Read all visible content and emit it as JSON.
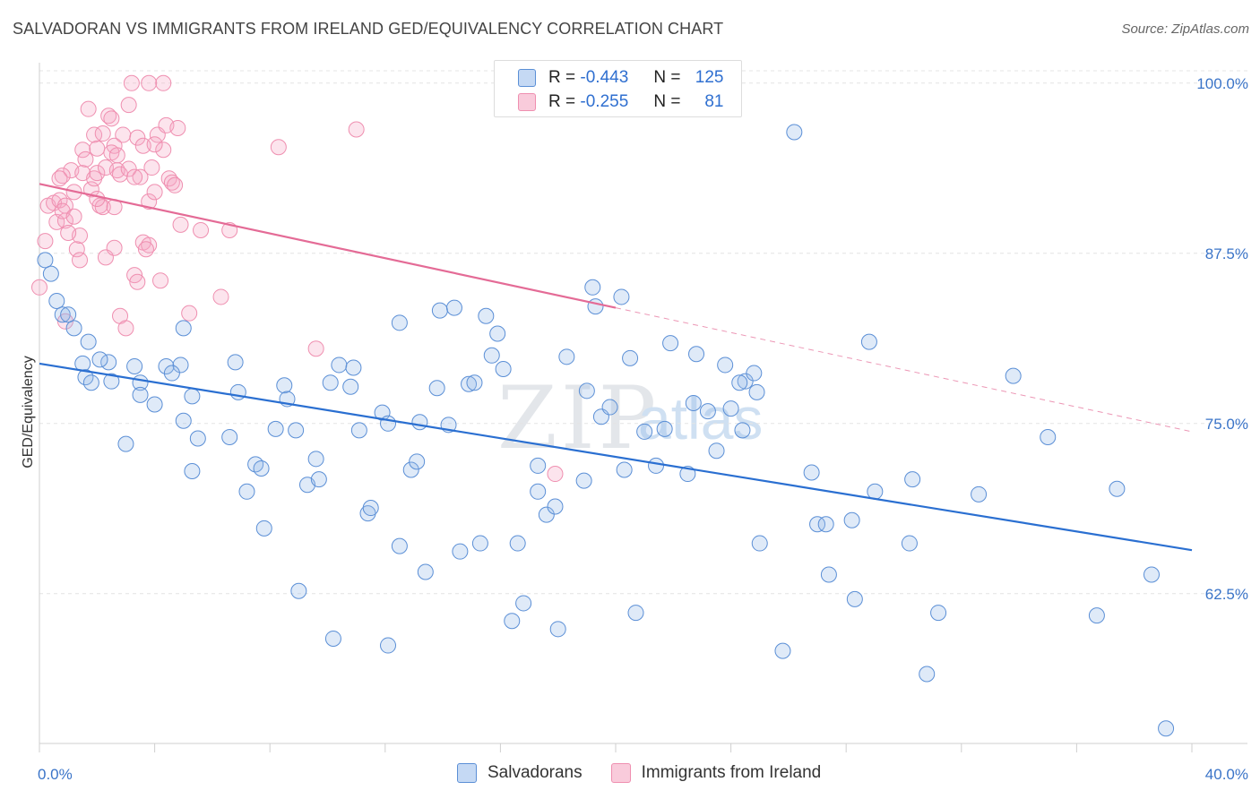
{
  "title": "SALVADORAN VS IMMIGRANTS FROM IRELAND GED/EQUIVALENCY CORRELATION CHART",
  "source": "Source: ZipAtlas.com",
  "watermark": {
    "zip": "ZIP",
    "atlas": "atlas"
  },
  "legend": {
    "rows": [
      {
        "r_label": "R =",
        "r_value": "-0.443",
        "n_label": "N =",
        "n_value": "125"
      },
      {
        "r_label": "R =",
        "r_value": "-0.255",
        "n_label": "N =",
        "n_value": "81"
      }
    ]
  },
  "bottom_legend": {
    "series1": "Salvadorans",
    "series2": "Immigrants from Ireland"
  },
  "chart_data": {
    "type": "scatter",
    "title": "SALVADORAN VS IMMIGRANTS FROM IRELAND GED/EQUIVALENCY CORRELATION CHART",
    "xlabel": "",
    "ylabel": "GED/Equivalency",
    "xlim": [
      0,
      40
    ],
    "ylim": [
      51.5,
      101.5
    ],
    "x_tick_labels": [
      "0.0%",
      "40.0%"
    ],
    "y_tick_labels": [
      "100.0%",
      "87.5%",
      "75.0%",
      "62.5%"
    ],
    "y_ticks": [
      100,
      87.5,
      75,
      62.5
    ],
    "grid": true,
    "colors": {
      "series1": "#5b8fd6",
      "series2": "#ef8fb0",
      "line1": "#2a6fd1",
      "line2": "#e46b96",
      "axis_text": "#3a74c8"
    },
    "series": [
      {
        "name": "Salvadorans",
        "trend": {
          "x": [
            0,
            40
          ],
          "y": [
            79.4,
            65.7
          ]
        },
        "points": [
          [
            0.2,
            87.0
          ],
          [
            0.4,
            86.0
          ],
          [
            0.6,
            84.0
          ],
          [
            0.8,
            83.0
          ],
          [
            1.2,
            82.0
          ],
          [
            1.7,
            81.0
          ],
          [
            1.0,
            83.0
          ],
          [
            2.4,
            79.5
          ],
          [
            1.5,
            79.4
          ],
          [
            1.6,
            78.4
          ],
          [
            2.1,
            79.7
          ],
          [
            1.8,
            78.0
          ],
          [
            2.5,
            78.1
          ],
          [
            3.5,
            78.0
          ],
          [
            3.3,
            79.2
          ],
          [
            4.4,
            79.2
          ],
          [
            4.9,
            79.3
          ],
          [
            4.6,
            78.7
          ],
          [
            3.0,
            73.5
          ],
          [
            3.5,
            77.1
          ],
          [
            4.0,
            76.4
          ],
          [
            5.0,
            82.0
          ],
          [
            5.0,
            75.2
          ],
          [
            5.3,
            71.5
          ],
          [
            5.5,
            73.9
          ],
          [
            5.3,
            77.0
          ],
          [
            6.8,
            79.5
          ],
          [
            6.9,
            77.3
          ],
          [
            7.5,
            72.0
          ],
          [
            7.7,
            71.7
          ],
          [
            7.2,
            70.0
          ],
          [
            7.8,
            67.3
          ],
          [
            8.2,
            74.6
          ],
          [
            8.5,
            77.8
          ],
          [
            8.6,
            76.8
          ],
          [
            8.9,
            74.5
          ],
          [
            9.0,
            62.7
          ],
          [
            9.3,
            70.5
          ],
          [
            9.6,
            72.4
          ],
          [
            9.7,
            70.9
          ],
          [
            10.1,
            78.0
          ],
          [
            10.4,
            79.3
          ],
          [
            10.8,
            77.7
          ],
          [
            10.9,
            79.1
          ],
          [
            11.1,
            74.5
          ],
          [
            10.2,
            59.2
          ],
          [
            11.4,
            68.4
          ],
          [
            11.5,
            68.8
          ],
          [
            11.9,
            75.8
          ],
          [
            12.1,
            75.0
          ],
          [
            12.1,
            58.7
          ],
          [
            12.5,
            82.4
          ],
          [
            12.5,
            66.0
          ],
          [
            12.9,
            71.6
          ],
          [
            13.1,
            72.2
          ],
          [
            13.2,
            75.1
          ],
          [
            13.4,
            64.1
          ],
          [
            13.8,
            77.6
          ],
          [
            13.9,
            83.3
          ],
          [
            14.2,
            74.9
          ],
          [
            14.4,
            83.5
          ],
          [
            14.6,
            65.6
          ],
          [
            14.9,
            77.9
          ],
          [
            15.1,
            78.0
          ],
          [
            15.3,
            66.2
          ],
          [
            15.5,
            82.9
          ],
          [
            15.9,
            81.6
          ],
          [
            16.1,
            79.0
          ],
          [
            16.4,
            60.5
          ],
          [
            16.6,
            66.2
          ],
          [
            16.8,
            61.8
          ],
          [
            17.3,
            71.9
          ],
          [
            17.3,
            70.0
          ],
          [
            17.6,
            68.3
          ],
          [
            17.9,
            68.9
          ],
          [
            18.0,
            59.9
          ],
          [
            18.3,
            79.9
          ],
          [
            18.9,
            70.8
          ],
          [
            19.0,
            77.4
          ],
          [
            19.2,
            85.0
          ],
          [
            19.3,
            83.6
          ],
          [
            19.5,
            75.5
          ],
          [
            19.8,
            76.2
          ],
          [
            20.2,
            84.3
          ],
          [
            20.3,
            71.6
          ],
          [
            20.5,
            79.8
          ],
          [
            20.7,
            61.1
          ],
          [
            21.0,
            74.4
          ],
          [
            21.4,
            71.9
          ],
          [
            21.7,
            74.6
          ],
          [
            21.9,
            80.9
          ],
          [
            22.5,
            71.3
          ],
          [
            22.7,
            76.5
          ],
          [
            22.8,
            80.1
          ],
          [
            23.2,
            75.9
          ],
          [
            23.8,
            79.3
          ],
          [
            24.0,
            76.1
          ],
          [
            24.4,
            74.5
          ],
          [
            24.5,
            78.1
          ],
          [
            24.8,
            78.7
          ],
          [
            24.9,
            77.3
          ],
          [
            25.0,
            66.2
          ],
          [
            24.3,
            78.0
          ],
          [
            26.2,
            96.4
          ],
          [
            25.8,
            58.3
          ],
          [
            26.8,
            71.4
          ],
          [
            27.0,
            67.6
          ],
          [
            27.3,
            67.6
          ],
          [
            27.4,
            63.9
          ],
          [
            28.3,
            62.1
          ],
          [
            28.2,
            67.9
          ],
          [
            28.8,
            81.0
          ],
          [
            29.0,
            70.0
          ],
          [
            30.2,
            66.2
          ],
          [
            30.3,
            70.9
          ],
          [
            30.8,
            56.6
          ],
          [
            31.2,
            61.1
          ],
          [
            32.6,
            69.8
          ],
          [
            33.8,
            78.5
          ],
          [
            36.7,
            60.9
          ],
          [
            37.4,
            70.2
          ],
          [
            38.6,
            63.9
          ],
          [
            39.1,
            52.6
          ],
          [
            35.0,
            74.0
          ],
          [
            23.5,
            73.0
          ],
          [
            15.7,
            80.0
          ],
          [
            6.6,
            74.0
          ]
        ]
      },
      {
        "name": "Immigrants from Ireland",
        "trend": {
          "x": [
            0,
            40
          ],
          "y": [
            92.6,
            74.4
          ]
        },
        "points": [
          [
            0.0,
            85.0
          ],
          [
            0.2,
            88.4
          ],
          [
            0.3,
            91.0
          ],
          [
            0.5,
            91.2
          ],
          [
            0.6,
            89.8
          ],
          [
            0.7,
            91.4
          ],
          [
            0.9,
            89.9
          ],
          [
            0.9,
            91.0
          ],
          [
            1.1,
            93.6
          ],
          [
            0.8,
            90.6
          ],
          [
            1.2,
            92.0
          ],
          [
            1.3,
            87.8
          ],
          [
            1.5,
            93.4
          ],
          [
            1.5,
            95.1
          ],
          [
            1.6,
            94.4
          ],
          [
            1.8,
            92.2
          ],
          [
            1.9,
            93.0
          ],
          [
            2.0,
            93.4
          ],
          [
            2.1,
            91.0
          ],
          [
            2.2,
            90.9
          ],
          [
            2.3,
            93.8
          ],
          [
            1.7,
            98.1
          ],
          [
            1.9,
            96.2
          ],
          [
            2.2,
            96.3
          ],
          [
            2.0,
            95.2
          ],
          [
            2.4,
            97.6
          ],
          [
            2.5,
            97.4
          ],
          [
            2.6,
            95.4
          ],
          [
            2.7,
            93.6
          ],
          [
            2.8,
            93.3
          ],
          [
            2.5,
            94.9
          ],
          [
            2.9,
            96.2
          ],
          [
            3.1,
            98.4
          ],
          [
            3.2,
            100.0
          ],
          [
            3.4,
            96.0
          ],
          [
            3.1,
            93.7
          ],
          [
            3.5,
            93.1
          ],
          [
            3.6,
            95.4
          ],
          [
            3.8,
            100.0
          ],
          [
            3.8,
            91.3
          ],
          [
            3.9,
            93.8
          ],
          [
            4.0,
            92.0
          ],
          [
            4.1,
            96.2
          ],
          [
            4.3,
            95.1
          ],
          [
            4.4,
            96.9
          ],
          [
            4.5,
            93.0
          ],
          [
            4.3,
            100.0
          ],
          [
            4.6,
            92.7
          ],
          [
            4.7,
            92.5
          ],
          [
            4.8,
            96.7
          ],
          [
            2.3,
            87.2
          ],
          [
            2.6,
            87.9
          ],
          [
            3.3,
            85.9
          ],
          [
            3.4,
            85.4
          ],
          [
            3.6,
            88.3
          ],
          [
            3.8,
            88.1
          ],
          [
            3.7,
            87.8
          ],
          [
            4.9,
            89.6
          ],
          [
            5.2,
            83.1
          ],
          [
            5.6,
            89.2
          ],
          [
            6.3,
            84.3
          ],
          [
            6.6,
            89.2
          ],
          [
            8.3,
            95.3
          ],
          [
            9.6,
            80.5
          ],
          [
            11.0,
            96.6
          ],
          [
            2.8,
            82.9
          ],
          [
            3.0,
            82.0
          ],
          [
            17.9,
            71.3
          ],
          [
            1.4,
            88.8
          ],
          [
            1.2,
            90.2
          ],
          [
            0.8,
            93.2
          ],
          [
            1.4,
            87.0
          ],
          [
            2.6,
            90.9
          ],
          [
            2.7,
            94.7
          ],
          [
            4.0,
            95.5
          ],
          [
            3.3,
            93.1
          ],
          [
            4.2,
            85.5
          ],
          [
            0.9,
            82.5
          ],
          [
            0.7,
            93.0
          ],
          [
            1.0,
            89.0
          ],
          [
            2.0,
            91.5
          ]
        ]
      }
    ]
  }
}
